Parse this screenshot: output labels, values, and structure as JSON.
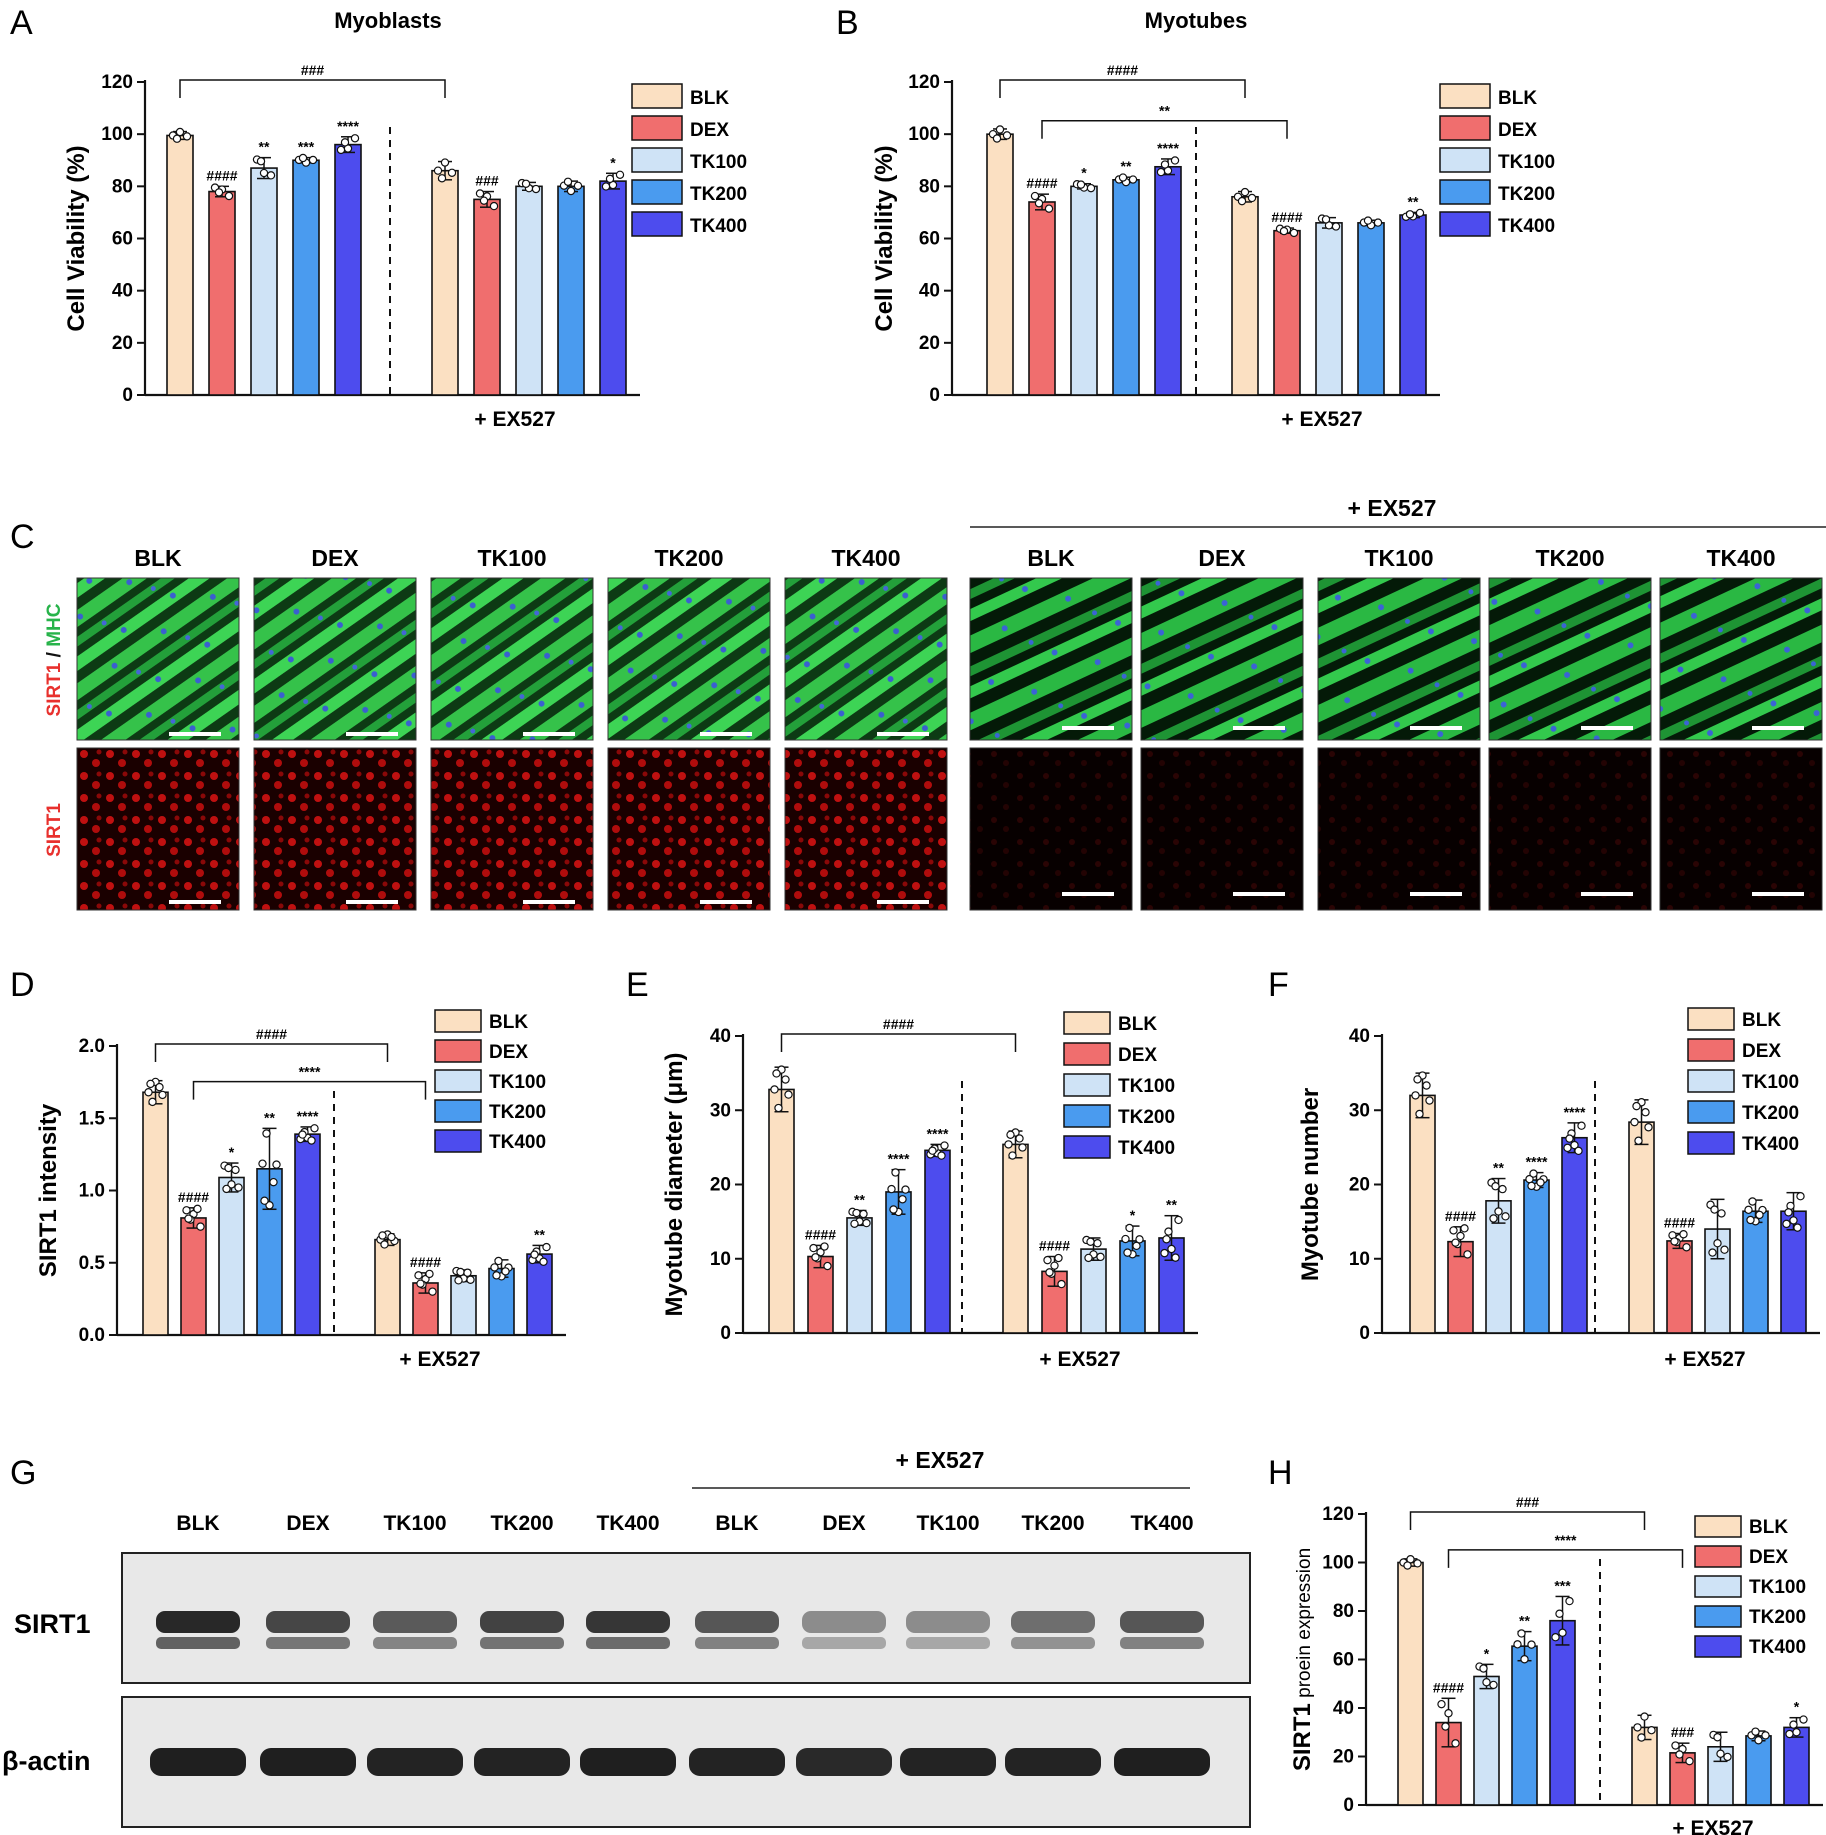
{
  "colors": {
    "BLK": "#fbe0c2",
    "DEX": "#f06e6e",
    "TK100": "#cfe3f6",
    "TK200": "#4a9bef",
    "TK400": "#4d4cee",
    "mhc_green": "#27b34a",
    "sirt1_red": "#e8302d"
  },
  "legend_labels": [
    "BLK",
    "DEX",
    "TK100",
    "TK200",
    "TK400"
  ],
  "ex527_label": "+ EX527",
  "panel_labels": {
    "A": "A",
    "B": "B",
    "C": "C",
    "D": "D",
    "E": "E",
    "F": "F",
    "G": "G",
    "H": "H"
  },
  "panel_C": {
    "column_labels": [
      "BLK",
      "DEX",
      "TK100",
      "TK200",
      "TK400",
      "BLK",
      "DEX",
      "TK100",
      "TK200",
      "TK400"
    ],
    "ex527_label": "+ EX527",
    "row_label_top_a": "SIRT1",
    "row_label_top_sep": " / ",
    "row_label_top_b": "MHC",
    "row_label_bottom": "SIRT1"
  },
  "panel_G": {
    "ex527_label": "+ EX527",
    "lane_labels": [
      "BLK",
      "DEX",
      "TK100",
      "TK200",
      "TK400",
      "BLK",
      "DEX",
      "TK100",
      "TK200",
      "TK400"
    ],
    "row_labels": [
      "SIRT1",
      "β-actin"
    ],
    "sirt1_band_intensity": [
      0.95,
      0.8,
      0.7,
      0.82,
      0.88,
      0.72,
      0.45,
      0.45,
      0.6,
      0.72
    ],
    "actin_band_intensity": [
      0.95,
      0.95,
      0.93,
      0.93,
      0.95,
      0.93,
      0.9,
      0.93,
      0.93,
      0.95
    ]
  },
  "chart_data": [
    {
      "id": "A",
      "type": "bar",
      "title": "Myoblasts",
      "ylabel": "Cell Viability (%)",
      "ylim": [
        0,
        120
      ],
      "yticks": [
        "0",
        "20",
        "40",
        "60",
        "80",
        "100",
        "120"
      ],
      "groups": [
        "",
        "+ EX527"
      ],
      "values": [
        [
          99.5,
          78,
          87,
          90,
          96
        ],
        [
          86,
          75,
          80,
          80,
          82
        ]
      ],
      "errors": [
        [
          1.5,
          2,
          4,
          1,
          3
        ],
        [
          3.5,
          3,
          1.5,
          2,
          3
        ]
      ],
      "significance": [
        [
          "",
          "####",
          "**",
          "***",
          "****"
        ],
        [
          "",
          "###",
          "",
          "",
          "*"
        ]
      ],
      "comparisons": [
        {
          "from": [
            0,
            0
          ],
          "to": [
            1,
            0
          ],
          "label": "###"
        }
      ],
      "legend": "right"
    },
    {
      "id": "B",
      "type": "bar",
      "title": "Myotubes",
      "ylabel": "Cell Viability (%)",
      "ylim": [
        0,
        120
      ],
      "yticks": [
        "0",
        "20",
        "40",
        "60",
        "80",
        "100",
        "120"
      ],
      "groups": [
        "",
        "+ EX527"
      ],
      "values": [
        [
          100,
          74,
          80,
          82.5,
          87.5
        ],
        [
          76,
          63,
          66,
          66,
          69
        ]
      ],
      "errors": [
        [
          2,
          3,
          1,
          1,
          3
        ],
        [
          2,
          1,
          2,
          1,
          1
        ]
      ],
      "significance": [
        [
          "",
          "####",
          "*",
          "**",
          "****"
        ],
        [
          "",
          "####",
          "",
          "",
          "**"
        ]
      ],
      "comparisons": [
        {
          "from": [
            0,
            0
          ],
          "to": [
            1,
            0
          ],
          "label": "####"
        },
        {
          "from": [
            0,
            1
          ],
          "to": [
            1,
            1
          ],
          "label": "**"
        }
      ],
      "legend": "right"
    },
    {
      "id": "D",
      "type": "bar",
      "title": "",
      "ylabel": "SIRT1 intensity",
      "ylim": [
        0,
        2.0
      ],
      "yticks": [
        "0.0",
        "0.5",
        "1.0",
        "1.5",
        "2.0"
      ],
      "groups": [
        "",
        "+ EX527"
      ],
      "values": [
        [
          1.68,
          0.81,
          1.09,
          1.15,
          1.39
        ],
        [
          0.66,
          0.36,
          0.41,
          0.46,
          0.56
        ]
      ],
      "errors": [
        [
          0.08,
          0.07,
          0.1,
          0.28,
          0.05
        ],
        [
          0.04,
          0.07,
          0.04,
          0.06,
          0.06
        ]
      ],
      "significance": [
        [
          "",
          "####",
          "*",
          "**",
          "****"
        ],
        [
          "",
          "####",
          "",
          "",
          "**"
        ]
      ],
      "comparisons": [
        {
          "from": [
            0,
            0
          ],
          "to": [
            1,
            0
          ],
          "label": "####"
        },
        {
          "from": [
            0,
            1
          ],
          "to": [
            1,
            1
          ],
          "label": "****"
        }
      ],
      "legend": "right"
    },
    {
      "id": "E",
      "type": "bar",
      "title": "",
      "ylabel": "Myotube diameter (μm)",
      "ylim": [
        0,
        40
      ],
      "yticks": [
        "0",
        "10",
        "20",
        "30",
        "40"
      ],
      "groups": [
        "",
        "+ EX527"
      ],
      "values": [
        [
          32.8,
          10.3,
          15.5,
          19,
          24.6
        ],
        [
          25.4,
          8.3,
          11.3,
          12.4,
          12.8
        ]
      ],
      "errors": [
        [
          3,
          1.5,
          1,
          3,
          0.8
        ],
        [
          1.8,
          2,
          1.5,
          2,
          3
        ]
      ],
      "significance": [
        [
          "",
          "####",
          "**",
          "****",
          "****"
        ],
        [
          "",
          "####",
          "",
          "*",
          "**"
        ]
      ],
      "comparisons": [
        {
          "from": [
            0,
            0
          ],
          "to": [
            1,
            0
          ],
          "label": "####"
        }
      ],
      "legend": "right"
    },
    {
      "id": "F",
      "type": "bar",
      "title": "",
      "ylabel": "Myotube number",
      "ylim": [
        0,
        40
      ],
      "yticks": [
        "0",
        "10",
        "20",
        "30",
        "40"
      ],
      "groups": [
        "",
        "+ EX527"
      ],
      "values": [
        [
          32,
          12.3,
          17.8,
          20.6,
          26.3
        ],
        [
          28.4,
          12.4,
          14,
          16.4,
          16.4
        ]
      ],
      "errors": [
        [
          3,
          2,
          3,
          1,
          2
        ],
        [
          3,
          1,
          4,
          1.5,
          2.5
        ]
      ],
      "significance": [
        [
          "",
          "####",
          "**",
          "****",
          "****"
        ],
        [
          "",
          "####",
          "",
          "",
          ""
        ]
      ],
      "comparisons": [],
      "legend": "right"
    },
    {
      "id": "H",
      "type": "bar",
      "title": "",
      "ylabel_a": "SIRT1",
      "ylabel_b": " proein expression",
      "ylim": [
        0,
        120
      ],
      "yticks": [
        "0",
        "20",
        "40",
        "60",
        "80",
        "100",
        "120"
      ],
      "groups": [
        "",
        "+ EX527"
      ],
      "values": [
        [
          100,
          34,
          53,
          65.5,
          76
        ],
        [
          32,
          21.5,
          24,
          28.5,
          32
        ]
      ],
      "errors": [
        [
          1.5,
          10,
          5,
          6,
          10
        ],
        [
          5,
          4,
          6,
          2,
          4
        ]
      ],
      "significance": [
        [
          "",
          "####",
          "*",
          "**",
          "***"
        ],
        [
          "",
          "###",
          "",
          "",
          "*"
        ]
      ],
      "comparisons": [
        {
          "from": [
            0,
            0
          ],
          "to": [
            1,
            0
          ],
          "label": "###"
        },
        {
          "from": [
            0,
            1
          ],
          "to": [
            1,
            1
          ],
          "label": "****"
        }
      ],
      "legend": "right"
    }
  ]
}
